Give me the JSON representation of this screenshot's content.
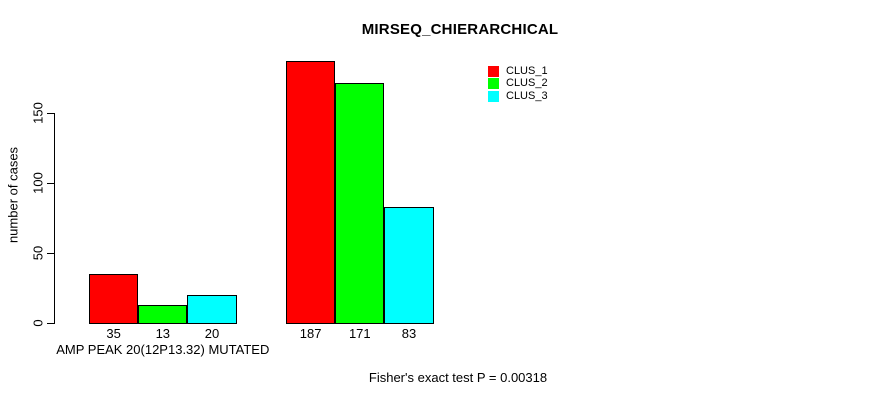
{
  "chart_data": {
    "type": "bar",
    "title": "MIRSEQ_CHIERARCHICAL",
    "ylabel": "number of cases",
    "xlabel": "",
    "ylim": [
      0,
      150
    ],
    "yticks": [
      0,
      50,
      100,
      150
    ],
    "grid": false,
    "legend_position": "top-right",
    "categories": [
      "AMP PEAK 20(12P13.32) MUTATED",
      ""
    ],
    "series": [
      {
        "name": "CLUS_1",
        "color": "#ff0000",
        "values": [
          35,
          187
        ]
      },
      {
        "name": "CLUS_2",
        "color": "#00ff00",
        "values": [
          13,
          171
        ]
      },
      {
        "name": "CLUS_3",
        "color": "#00ffff",
        "values": [
          20,
          83
        ]
      }
    ],
    "bar_value_labels": [
      [
        35,
        13,
        20
      ],
      [
        187,
        171,
        83
      ]
    ],
    "annotation": "Fisher's exact test P = 0.00318"
  },
  "colors": {
    "background": "#ffffff",
    "text": "#000000",
    "axis": "#000000"
  }
}
